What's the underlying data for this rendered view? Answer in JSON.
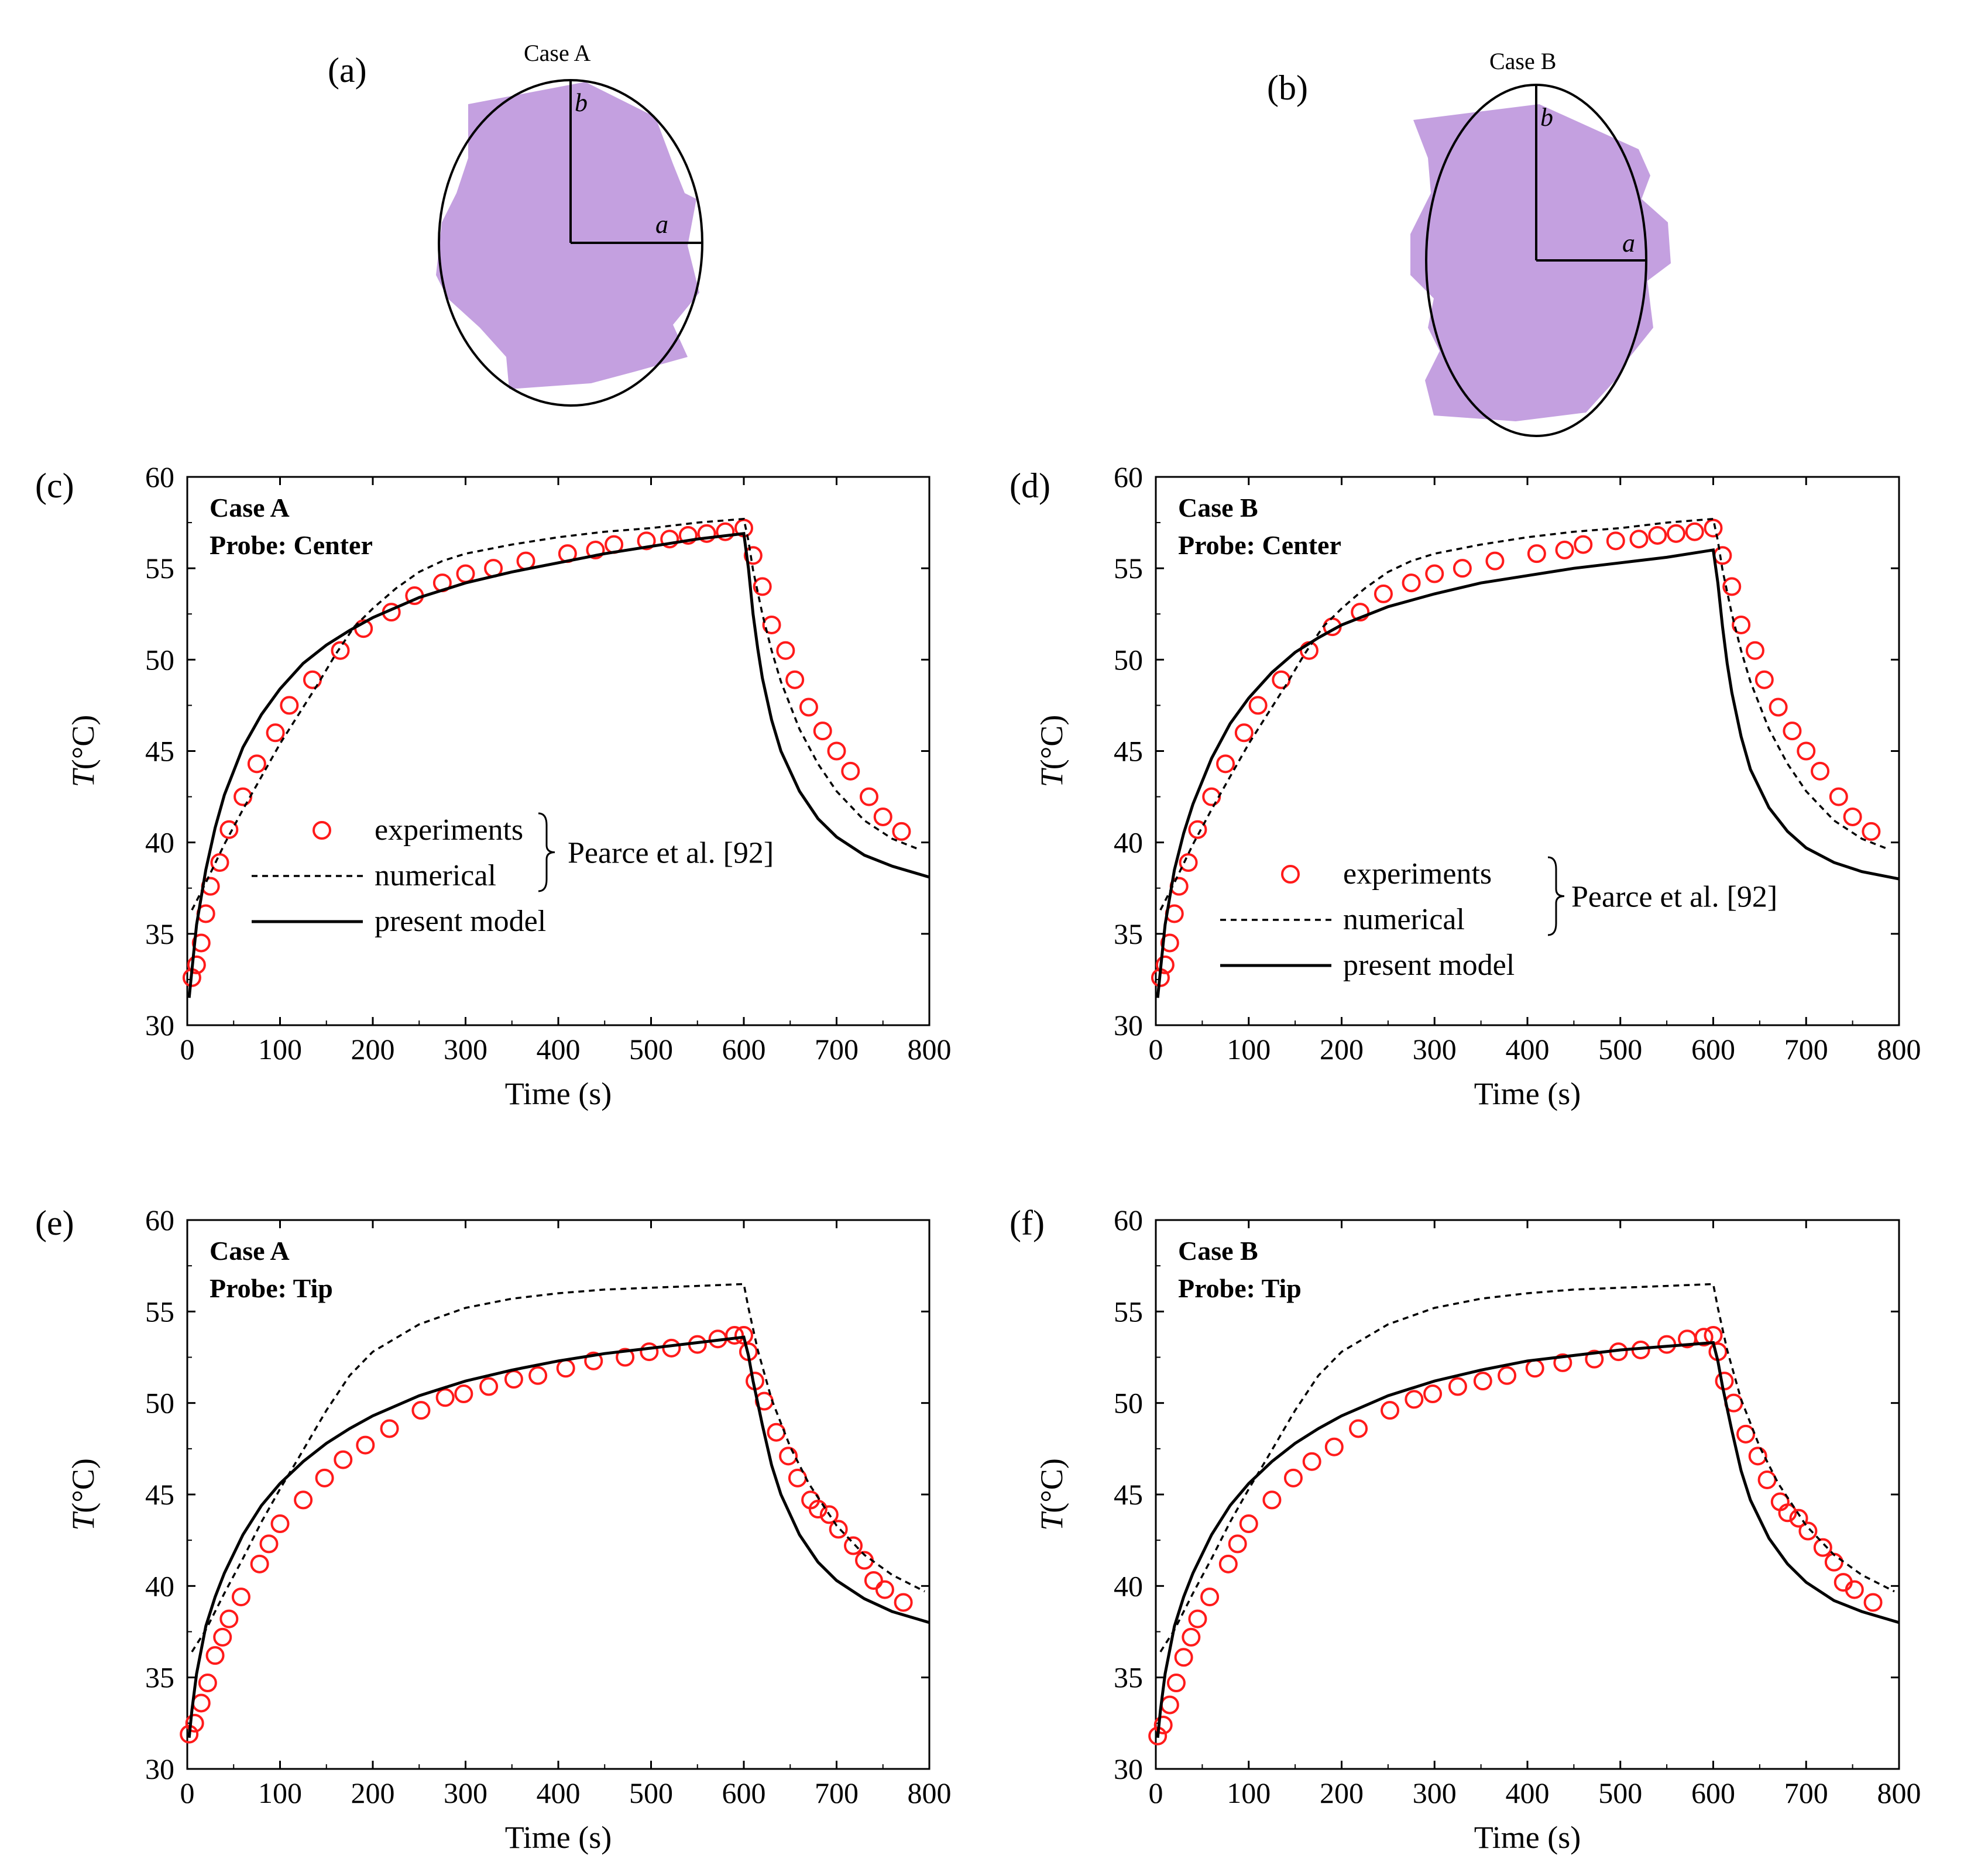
{
  "colors": {
    "shape_fill": "#c4a0e0",
    "experiments": "#ff1a1a",
    "lines": "#000000"
  },
  "shapes": [
    {
      "panel_label": "(a)",
      "case_label": "Case A",
      "a_label": "a",
      "b_label": "b"
    },
    {
      "panel_label": "(b)",
      "case_label": "Case B",
      "a_label": "a",
      "b_label": "b"
    }
  ],
  "legend": {
    "experiments": "experiments",
    "numerical": "numerical",
    "present_model": "present model",
    "reference": "Pearce et al. [92]"
  },
  "chart_data": [
    {
      "panel_label": "(c)",
      "type": "line",
      "title": "Case A",
      "subtitle": "Probe: Center",
      "xlabel": "Time (s)",
      "ylabel_main": "T",
      "ylabel_unit": "(°C)",
      "xlim": [
        0,
        800
      ],
      "ylim": [
        30,
        60
      ],
      "xticks": [
        0,
        100,
        200,
        300,
        400,
        500,
        600,
        700,
        800
      ],
      "yticks": [
        30,
        35,
        40,
        45,
        50,
        55,
        60
      ],
      "legend_position": "center-left",
      "series": [
        {
          "name": "experiments",
          "style": "markers",
          "x": [
            5,
            10,
            15,
            20,
            25,
            35,
            45,
            60,
            75,
            95,
            110,
            135,
            165,
            190,
            220,
            245,
            275,
            300,
            330,
            365,
            410,
            440,
            460,
            495,
            520,
            540,
            560,
            580,
            600,
            610,
            620,
            630,
            645,
            655,
            670,
            685,
            700,
            715,
            735,
            750,
            770
          ],
          "y": [
            32.6,
            33.3,
            34.5,
            36.1,
            37.6,
            38.9,
            40.7,
            42.5,
            44.3,
            46.0,
            47.5,
            48.9,
            50.5,
            51.7,
            52.6,
            53.5,
            54.2,
            54.7,
            55.0,
            55.4,
            55.8,
            56.0,
            56.3,
            56.5,
            56.6,
            56.8,
            56.9,
            57.0,
            57.2,
            55.7,
            54.0,
            51.9,
            50.5,
            48.9,
            47.4,
            46.1,
            45.0,
            43.9,
            42.5,
            41.4,
            40.6
          ]
        },
        {
          "name": "numerical",
          "style": "dashed",
          "x": [
            5,
            10,
            20,
            40,
            60,
            80,
            100,
            120,
            140,
            160,
            180,
            200,
            225,
            250,
            275,
            300,
            350,
            400,
            450,
            500,
            550,
            600,
            605,
            610,
            620,
            630,
            640,
            660,
            680,
            700,
            730,
            760,
            790
          ],
          "y": [
            36.3,
            36.8,
            37.8,
            39.9,
            41.8,
            43.6,
            45.4,
            47.0,
            48.6,
            50.3,
            51.8,
            52.8,
            53.9,
            54.8,
            55.4,
            55.8,
            56.3,
            56.7,
            57.0,
            57.2,
            57.5,
            57.7,
            56.5,
            54.9,
            52.5,
            50.5,
            48.8,
            46.2,
            44.3,
            42.8,
            41.2,
            40.2,
            39.6
          ]
        },
        {
          "name": "present model",
          "style": "solid",
          "x": [
            2,
            5,
            10,
            20,
            30,
            40,
            60,
            80,
            100,
            125,
            150,
            175,
            200,
            250,
            300,
            350,
            400,
            450,
            500,
            550,
            600,
            605,
            610,
            615,
            620,
            630,
            640,
            660,
            680,
            700,
            730,
            760,
            800
          ],
          "y": [
            31.5,
            33.0,
            35.5,
            38.5,
            40.8,
            42.6,
            45.2,
            47.0,
            48.4,
            49.8,
            50.8,
            51.6,
            52.3,
            53.4,
            54.2,
            54.8,
            55.3,
            55.8,
            56.2,
            56.6,
            56.9,
            55.0,
            52.5,
            50.6,
            49.0,
            46.7,
            45.0,
            42.8,
            41.3,
            40.3,
            39.3,
            38.7,
            38.1
          ]
        }
      ]
    },
    {
      "panel_label": "(d)",
      "type": "line",
      "title": "Case B",
      "subtitle": "Probe: Center",
      "xlabel": "Time (s)",
      "ylabel_main": "T",
      "ylabel_unit": "(°C)",
      "xlim": [
        0,
        800
      ],
      "ylim": [
        30,
        60
      ],
      "xticks": [
        0,
        100,
        200,
        300,
        400,
        500,
        600,
        700,
        800
      ],
      "yticks": [
        30,
        35,
        40,
        45,
        50,
        55,
        60
      ],
      "legend_position": "bottom-left",
      "series": [
        {
          "name": "experiments",
          "style": "markers",
          "x": [
            5,
            10,
            15,
            20,
            25,
            35,
            45,
            60,
            75,
            95,
            110,
            135,
            165,
            190,
            220,
            245,
            275,
            300,
            330,
            365,
            410,
            440,
            460,
            495,
            520,
            540,
            560,
            580,
            600,
            610,
            620,
            630,
            645,
            655,
            670,
            685,
            700,
            715,
            735,
            750,
            770
          ],
          "y": [
            32.6,
            33.3,
            34.5,
            36.1,
            37.6,
            38.9,
            40.7,
            42.5,
            44.3,
            46.0,
            47.5,
            48.9,
            50.5,
            51.8,
            52.6,
            53.6,
            54.2,
            54.7,
            55.0,
            55.4,
            55.8,
            56.0,
            56.3,
            56.5,
            56.6,
            56.8,
            56.9,
            57.0,
            57.2,
            55.7,
            54.0,
            51.9,
            50.5,
            48.9,
            47.4,
            46.1,
            45.0,
            43.9,
            42.5,
            41.4,
            40.6
          ]
        },
        {
          "name": "numerical",
          "style": "dashed",
          "x": [
            5,
            10,
            20,
            40,
            60,
            80,
            100,
            120,
            140,
            160,
            180,
            200,
            225,
            250,
            275,
            300,
            350,
            400,
            450,
            500,
            550,
            600,
            605,
            610,
            620,
            630,
            640,
            660,
            680,
            700,
            730,
            760,
            790
          ],
          "y": [
            36.3,
            36.8,
            37.8,
            39.9,
            41.8,
            43.6,
            45.4,
            47.0,
            48.6,
            50.3,
            51.8,
            52.8,
            53.9,
            54.8,
            55.4,
            55.8,
            56.3,
            56.7,
            57.0,
            57.2,
            57.5,
            57.7,
            56.5,
            54.9,
            52.5,
            50.5,
            48.8,
            46.2,
            44.3,
            42.8,
            41.2,
            40.2,
            39.6
          ]
        },
        {
          "name": "present model",
          "style": "solid",
          "x": [
            2,
            5,
            10,
            20,
            30,
            40,
            60,
            80,
            100,
            125,
            150,
            175,
            200,
            250,
            300,
            350,
            400,
            450,
            500,
            550,
            600,
            605,
            610,
            615,
            620,
            630,
            640,
            660,
            680,
            700,
            730,
            760,
            800
          ],
          "y": [
            31.5,
            33.0,
            35.5,
            38.5,
            40.5,
            42.1,
            44.6,
            46.5,
            47.9,
            49.3,
            50.4,
            51.2,
            51.9,
            52.9,
            53.6,
            54.2,
            54.6,
            55.0,
            55.3,
            55.6,
            56.0,
            54.2,
            51.8,
            49.8,
            48.2,
            45.8,
            44.0,
            41.9,
            40.6,
            39.7,
            38.9,
            38.4,
            38.0
          ]
        }
      ]
    },
    {
      "panel_label": "(e)",
      "type": "line",
      "title": "Case A",
      "subtitle": "Probe: Tip",
      "xlabel": "Time (s)",
      "ylabel_main": "T",
      "ylabel_unit": "(°C)",
      "xlim": [
        0,
        800
      ],
      "ylim": [
        30,
        60
      ],
      "xticks": [
        0,
        100,
        200,
        300,
        400,
        500,
        600,
        700,
        800
      ],
      "yticks": [
        30,
        35,
        40,
        45,
        50,
        55,
        60
      ],
      "legend_position": "none",
      "series": [
        {
          "name": "experiments",
          "style": "markers",
          "x": [
            2,
            8,
            15,
            22,
            30,
            38,
            45,
            58,
            78,
            88,
            100,
            125,
            148,
            168,
            192,
            218,
            252,
            278,
            298,
            325,
            352,
            378,
            408,
            438,
            472,
            498,
            522,
            550,
            572,
            590,
            600,
            605,
            612,
            622,
            635,
            648,
            658,
            672,
            680,
            692,
            702,
            718,
            730,
            740,
            752,
            772
          ],
          "y": [
            31.9,
            32.5,
            33.6,
            34.7,
            36.2,
            37.2,
            38.2,
            39.4,
            41.2,
            42.3,
            43.4,
            44.7,
            45.9,
            46.9,
            47.7,
            48.6,
            49.6,
            50.3,
            50.5,
            50.9,
            51.3,
            51.5,
            51.9,
            52.3,
            52.5,
            52.8,
            53.0,
            53.2,
            53.5,
            53.7,
            53.7,
            52.8,
            51.2,
            50.1,
            48.4,
            47.1,
            45.9,
            44.7,
            44.2,
            43.9,
            43.1,
            42.2,
            41.4,
            40.3,
            39.8,
            39.1
          ]
        },
        {
          "name": "numerical",
          "style": "dashed",
          "x": [
            5,
            20,
            40,
            60,
            80,
            100,
            120,
            150,
            175,
            200,
            250,
            300,
            350,
            400,
            450,
            500,
            550,
            600,
            605,
            615,
            630,
            650,
            670,
            700,
            730,
            760,
            795
          ],
          "y": [
            36.4,
            37.6,
            39.6,
            41.5,
            43.5,
            45.3,
            47.0,
            49.6,
            51.5,
            52.8,
            54.3,
            55.2,
            55.7,
            56.0,
            56.2,
            56.3,
            56.4,
            56.5,
            55.2,
            52.9,
            50.2,
            47.6,
            45.6,
            43.3,
            41.7,
            40.6,
            39.7
          ]
        },
        {
          "name": "present model",
          "style": "solid",
          "x": [
            2,
            5,
            10,
            20,
            30,
            40,
            60,
            80,
            100,
            125,
            150,
            175,
            200,
            250,
            300,
            350,
            400,
            450,
            500,
            550,
            600,
            605,
            610,
            615,
            620,
            630,
            640,
            660,
            680,
            700,
            730,
            760,
            800
          ],
          "y": [
            31.7,
            33.2,
            35.2,
            37.8,
            39.4,
            40.7,
            42.8,
            44.4,
            45.6,
            46.8,
            47.8,
            48.6,
            49.3,
            50.4,
            51.2,
            51.8,
            52.3,
            52.7,
            53.0,
            53.3,
            53.6,
            52.6,
            51.2,
            50.0,
            48.8,
            46.6,
            45.0,
            42.8,
            41.3,
            40.3,
            39.3,
            38.6,
            38.0
          ]
        }
      ]
    },
    {
      "panel_label": "(f)",
      "type": "line",
      "title": "Case B",
      "subtitle": "Probe: Tip",
      "xlabel": "Time (s)",
      "ylabel_main": "T",
      "ylabel_unit": "(°C)",
      "xlim": [
        0,
        800
      ],
      "ylim": [
        30,
        60
      ],
      "xticks": [
        0,
        100,
        200,
        300,
        400,
        500,
        600,
        700,
        800
      ],
      "yticks": [
        30,
        35,
        40,
        45,
        50,
        55,
        60
      ],
      "legend_position": "none",
      "series": [
        {
          "name": "experiments",
          "style": "markers",
          "x": [
            2,
            8,
            15,
            22,
            30,
            38,
            45,
            58,
            78,
            88,
            100,
            125,
            148,
            168,
            192,
            218,
            252,
            278,
            298,
            325,
            352,
            378,
            408,
            438,
            472,
            498,
            522,
            550,
            572,
            590,
            600,
            605,
            612,
            622,
            635,
            648,
            658,
            672,
            680,
            692,
            702,
            718,
            730,
            740,
            752,
            772
          ],
          "y": [
            31.8,
            32.4,
            33.5,
            34.7,
            36.1,
            37.2,
            38.2,
            39.4,
            41.2,
            42.3,
            43.4,
            44.7,
            45.9,
            46.8,
            47.6,
            48.6,
            49.6,
            50.2,
            50.5,
            50.9,
            51.2,
            51.5,
            51.9,
            52.2,
            52.4,
            52.8,
            52.9,
            53.2,
            53.5,
            53.6,
            53.7,
            52.8,
            51.2,
            50.0,
            48.3,
            47.1,
            45.8,
            44.6,
            44.0,
            43.7,
            43.0,
            42.1,
            41.3,
            40.2,
            39.8,
            39.1
          ]
        },
        {
          "name": "numerical",
          "style": "dashed",
          "x": [
            5,
            20,
            40,
            60,
            80,
            100,
            120,
            150,
            175,
            200,
            250,
            300,
            350,
            400,
            450,
            500,
            550,
            600,
            605,
            615,
            630,
            650,
            670,
            700,
            730,
            760,
            795
          ],
          "y": [
            36.4,
            37.6,
            39.6,
            41.5,
            43.5,
            45.3,
            47.0,
            49.6,
            51.5,
            52.8,
            54.3,
            55.2,
            55.7,
            56.0,
            56.2,
            56.3,
            56.4,
            56.5,
            55.2,
            52.9,
            50.2,
            47.6,
            45.6,
            43.3,
            41.7,
            40.6,
            39.7
          ]
        },
        {
          "name": "present model",
          "style": "solid",
          "x": [
            2,
            5,
            10,
            20,
            30,
            40,
            60,
            80,
            100,
            125,
            150,
            175,
            200,
            250,
            300,
            350,
            400,
            450,
            500,
            550,
            600,
            605,
            610,
            615,
            620,
            630,
            640,
            660,
            680,
            700,
            730,
            760,
            800
          ],
          "y": [
            31.7,
            33.2,
            35.2,
            37.8,
            39.4,
            40.7,
            42.8,
            44.4,
            45.6,
            46.8,
            47.8,
            48.6,
            49.3,
            50.4,
            51.2,
            51.8,
            52.3,
            52.6,
            52.9,
            53.1,
            53.3,
            52.3,
            50.9,
            49.7,
            48.5,
            46.3,
            44.7,
            42.6,
            41.2,
            40.2,
            39.2,
            38.6,
            38.0
          ]
        }
      ]
    }
  ]
}
